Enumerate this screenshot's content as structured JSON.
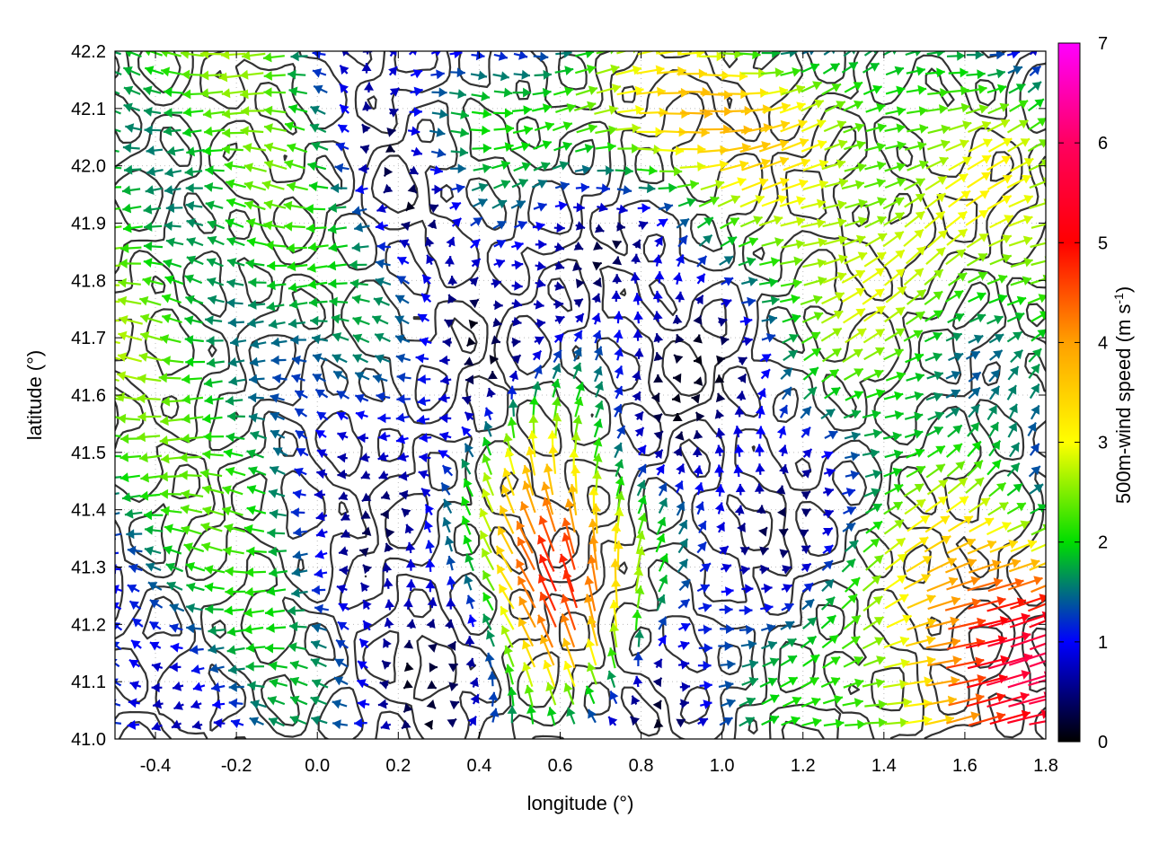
{
  "chart_data": {
    "type": "vector-field",
    "xlabel": "longitude (°)",
    "ylabel": "latitude (°)",
    "xlim": [
      -0.5,
      1.8
    ],
    "ylim": [
      41.0,
      42.2
    ],
    "xticks": [
      "-0.4",
      "-0.2",
      "0.0",
      "0.2",
      "0.4",
      "0.6",
      "0.8",
      "1.0",
      "1.2",
      "1.4",
      "1.6",
      "1.8"
    ],
    "xtick_values": [
      -0.4,
      -0.2,
      0.0,
      0.2,
      0.4,
      0.6,
      0.8,
      1.0,
      1.2,
      1.4,
      1.6,
      1.8
    ],
    "yticks": [
      "41.0",
      "41.1",
      "41.2",
      "41.3",
      "41.4",
      "41.5",
      "41.6",
      "41.7",
      "41.8",
      "41.9",
      "42.0",
      "42.1",
      "42.2"
    ],
    "ytick_values": [
      41.0,
      41.1,
      41.2,
      41.3,
      41.4,
      41.5,
      41.6,
      41.7,
      41.8,
      41.9,
      42.0,
      42.1,
      42.2
    ],
    "grid": true,
    "colorbar": {
      "label": "500m-wind speed (m s",
      "label_sup": "-1",
      "label_end": ")",
      "range": [
        0,
        7
      ],
      "ticks": [
        "0",
        "1",
        "2",
        "3",
        "4",
        "5",
        "6",
        "7"
      ],
      "tick_values": [
        0,
        1,
        2,
        3,
        4,
        5,
        6,
        7
      ],
      "colors": [
        "#000000",
        "#0000ff",
        "#00dd00",
        "#ffff00",
        "#ffa000",
        "#ff0000",
        "#ff00ff"
      ]
    },
    "wind_field_regions": [
      {
        "region": "west (-0.5 to 0.2)",
        "mean_speed": 1.8,
        "mean_direction": "from east (westward flow)"
      },
      {
        "region": "central-south (0.4 to 0.8, 41.0-41.5)",
        "mean_speed": 5.0,
        "mean_direction": "northward / north-westward"
      },
      {
        "region": "north-central (0.3 to 1.3, 41.9-42.2)",
        "mean_speed": 3.0,
        "mean_direction": "eastward"
      },
      {
        "region": "south-east (1.2 to 1.8, 41.0-41.4)",
        "mean_speed": 5.0,
        "mean_direction": "eastward / north-eastward"
      },
      {
        "region": "east (1.0 to 1.8, 41.5-42.0)",
        "mean_speed": 3.0,
        "mean_direction": "north-eastward"
      }
    ],
    "contour_color": "#333333",
    "grid_color": "#bbbbbb"
  }
}
